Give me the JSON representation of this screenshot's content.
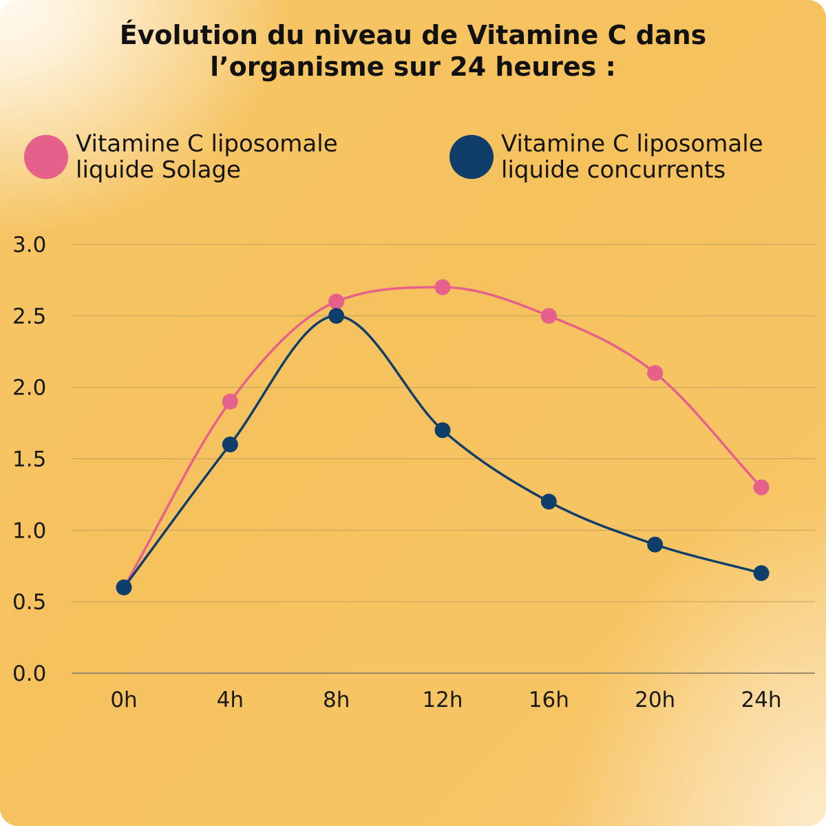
{
  "title_lines": [
    "Évolution du niveau de Vitamine C dans",
    "l’organisme sur 24 heures :"
  ],
  "legend": [
    {
      "line1": "Vitamine C liposomale",
      "line2": "liquide Solage",
      "color": "#e5608a"
    },
    {
      "line1": "Vitamine C liposomale",
      "line2": "liquide concurrents",
      "color": "#103e6b"
    }
  ],
  "chart_data": {
    "type": "line",
    "title": "Évolution du niveau de Vitamine C dans l’organisme sur 24 heures :",
    "xlabel": "",
    "ylabel": "",
    "categories": [
      "0h",
      "4h",
      "8h",
      "12h",
      "16h",
      "20h",
      "24h"
    ],
    "y_ticks": [
      "0.0",
      "0.5",
      "1.0",
      "1.5",
      "2.0",
      "2.5",
      "3.0"
    ],
    "ylim": [
      0,
      3
    ],
    "grid": true,
    "legend_position": "top",
    "series": [
      {
        "name": "Vitamine C liposomale liquide Solage",
        "color": "#e5608a",
        "values": [
          0.6,
          1.9,
          2.6,
          2.7,
          2.5,
          2.1,
          1.3
        ]
      },
      {
        "name": "Vitamine C liposomale liquide concurrents",
        "color": "#103e6b",
        "values": [
          0.6,
          1.6,
          2.5,
          1.7,
          1.2,
          0.9,
          0.7
        ]
      }
    ]
  }
}
